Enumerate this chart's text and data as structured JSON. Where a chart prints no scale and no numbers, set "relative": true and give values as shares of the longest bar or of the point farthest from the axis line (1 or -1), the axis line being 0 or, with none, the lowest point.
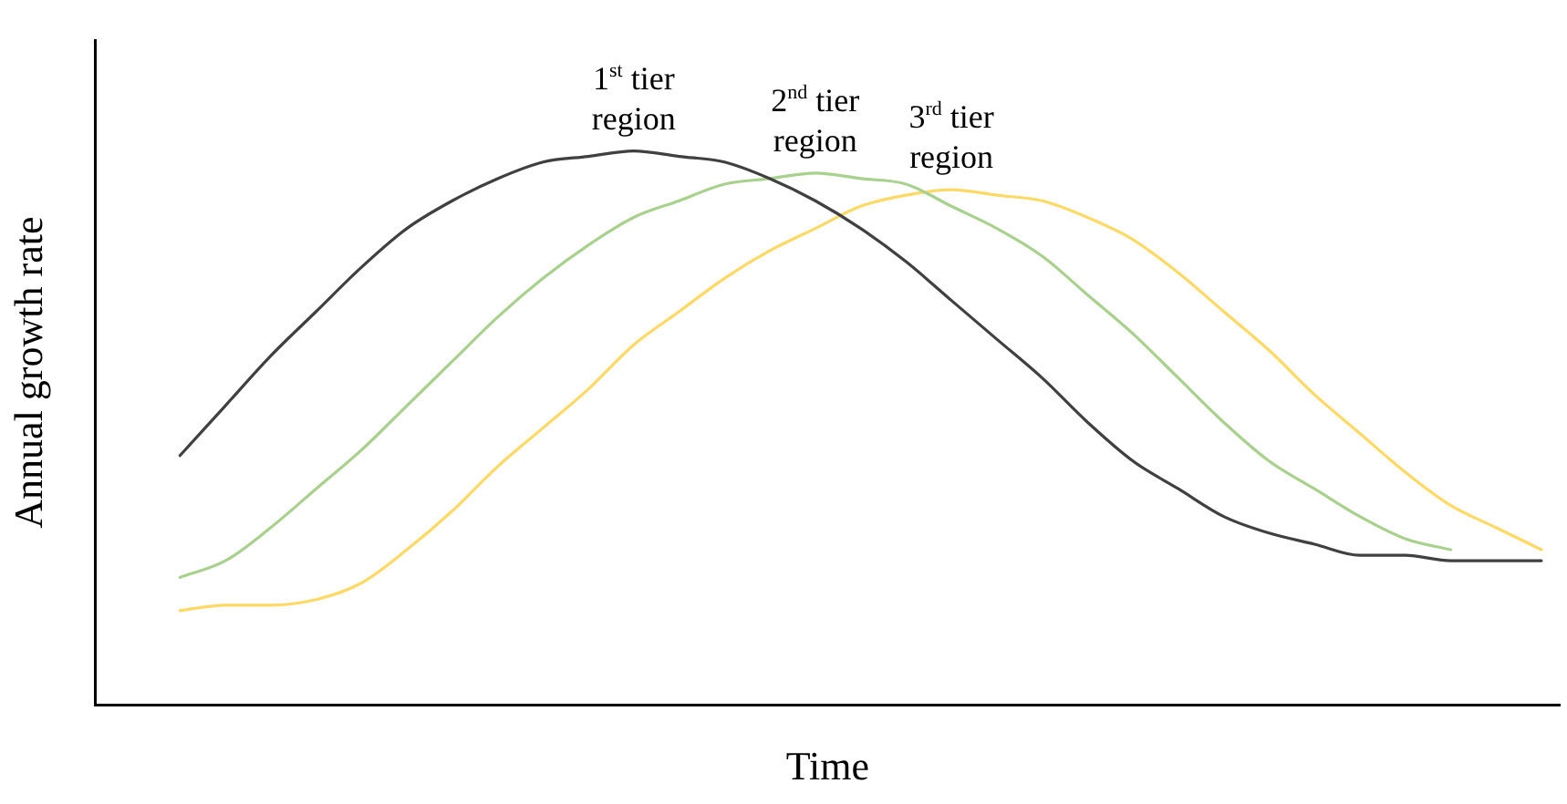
{
  "chart_data": {
    "type": "line",
    "relative": true,
    "xlabel": "Time",
    "ylabel": "Annual growth rate",
    "legend": false,
    "grid": false,
    "marker": "none",
    "line_style": "solid",
    "categories": [
      null,
      null,
      null,
      null,
      null,
      null,
      null,
      null,
      null,
      null,
      null,
      null,
      null,
      null,
      null,
      null,
      null,
      null,
      null,
      null,
      null,
      null,
      null,
      null,
      null,
      null,
      null,
      null,
      null,
      null,
      null
    ],
    "series": [
      {
        "name": "1$^{st}$ tier region",
        "color": "#404040",
        "values": [
          0.45,
          0.54,
          0.63,
          0.71,
          0.79,
          0.86,
          0.91,
          0.95,
          0.98,
          0.99,
          1,
          0.99,
          0.98,
          0.95,
          0.91,
          0.86,
          0.8,
          0.73,
          0.66,
          0.59,
          0.51,
          0.44,
          0.39,
          0.34,
          0.31,
          0.29,
          0.27,
          0.27,
          0.26,
          0.26,
          0.26
        ]
      },
      {
        "name": "2$^{nd}$ tier region",
        "color": "#a9d18e",
        "values": [
          0.23,
          0.26,
          0.32,
          0.39,
          0.46,
          0.54,
          0.62,
          0.7,
          0.77,
          0.83,
          0.88,
          0.91,
          0.94,
          0.95,
          0.96,
          0.95,
          0.94,
          0.9,
          0.86,
          0.81,
          0.74,
          0.67,
          0.59,
          0.51,
          0.44,
          0.39,
          0.34,
          0.3,
          0.28,
          null,
          null
        ]
      },
      {
        "name": "3$^{rd}$ tier region",
        "color": "#ffd966",
        "values": [
          0.17,
          0.18,
          0.18,
          0.19,
          0.22,
          0.28,
          0.35,
          0.43,
          0.5,
          0.57,
          0.65,
          0.71,
          0.77,
          0.82,
          0.86,
          0.9,
          0.92,
          0.93,
          0.92,
          0.91,
          0.88,
          0.84,
          0.78,
          0.71,
          0.64,
          0.56,
          0.49,
          0.42,
          0.36,
          0.32,
          0.28
        ]
      }
    ]
  }
}
